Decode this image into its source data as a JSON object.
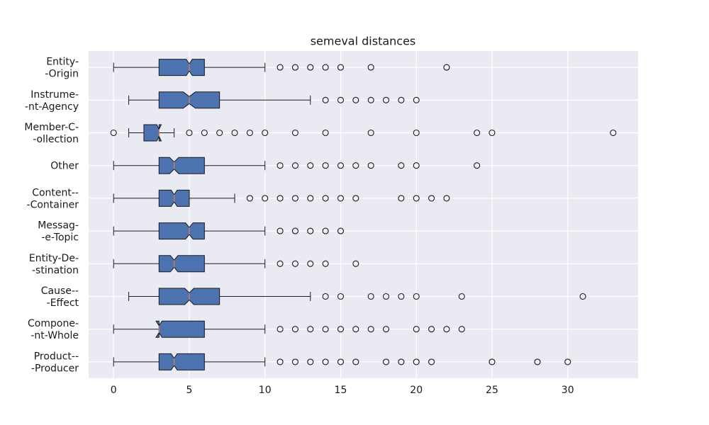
{
  "chart_data": {
    "type": "boxplot",
    "orientation": "horizontal",
    "notched": true,
    "title": "semeval distances",
    "xlabel": "",
    "ylabel": "",
    "xlim": [
      -1.65,
      34.65
    ],
    "xticks": [
      0,
      5,
      10,
      15,
      20,
      25,
      30
    ],
    "grid": true,
    "colors": {
      "plot_background": "#eaeaf2",
      "grid": "#ffffff",
      "box_fill": "#4c72b0",
      "box_edge": "#1a1a1a",
      "median": "#dd8452",
      "whisker": "#1a1a1a",
      "flier": "#1a1a1a"
    },
    "categories": [
      {
        "label": [
          "Entity-",
          "-Origin"
        ],
        "min": 0,
        "q1": 3,
        "median": 5,
        "q3": 6,
        "max": 10,
        "notch": [
          4.8,
          5.2
        ],
        "outliers": [
          11,
          12,
          13,
          14,
          15,
          17,
          22
        ]
      },
      {
        "label": [
          "Instrume-",
          "-nt-Agency"
        ],
        "min": 1,
        "q1": 3,
        "median": 5,
        "q3": 7,
        "max": 13,
        "notch": [
          4.6,
          5.4
        ],
        "outliers": [
          14,
          15,
          16,
          17,
          18,
          19,
          20
        ]
      },
      {
        "label": [
          "Member-C-",
          "-ollection"
        ],
        "min": 1,
        "q1": 2,
        "median": 3,
        "q3": 3,
        "max": 4,
        "notch": [
          2.85,
          3.15
        ],
        "outliers": [
          0,
          5,
          6,
          7,
          8,
          9,
          10,
          12,
          14,
          17,
          20,
          24,
          25,
          33
        ]
      },
      {
        "label": [
          "Other"
        ],
        "min": 0,
        "q1": 3,
        "median": 4,
        "q3": 6,
        "max": 10,
        "notch": [
          3.7,
          4.3
        ],
        "outliers": [
          11,
          12,
          13,
          14,
          15,
          16,
          17,
          19,
          20,
          24
        ]
      },
      {
        "label": [
          "Content--",
          "-Container"
        ],
        "min": 0,
        "q1": 3,
        "median": 4,
        "q3": 5,
        "max": 8,
        "notch": [
          3.8,
          4.2
        ],
        "outliers": [
          9,
          10,
          11,
          12,
          13,
          14,
          15,
          16,
          19,
          20,
          21,
          22
        ]
      },
      {
        "label": [
          "Messag-",
          "-e-Topic"
        ],
        "min": 0,
        "q1": 3,
        "median": 5,
        "q3": 6,
        "max": 10,
        "notch": [
          4.75,
          5.25
        ],
        "outliers": [
          11,
          12,
          13,
          14,
          15
        ]
      },
      {
        "label": [
          "Entity-De-",
          "-stination"
        ],
        "min": 0,
        "q1": 3,
        "median": 4,
        "q3": 6,
        "max": 10,
        "notch": [
          3.75,
          4.25
        ],
        "outliers": [
          11,
          12,
          13,
          14,
          16
        ]
      },
      {
        "label": [
          "Cause--",
          "-Effect"
        ],
        "min": 1,
        "q1": 3,
        "median": 5,
        "q3": 7,
        "max": 13,
        "notch": [
          4.7,
          5.3
        ],
        "outliers": [
          14,
          15,
          17,
          18,
          19,
          20,
          23,
          31
        ]
      },
      {
        "label": [
          "Compone-",
          "-nt-Whole"
        ],
        "min": 0,
        "q1": 3,
        "median": 3,
        "q3": 6,
        "max": 10,
        "notch": [
          2.8,
          3.2
        ],
        "outliers": [
          11,
          12,
          13,
          14,
          15,
          16,
          17,
          18,
          20,
          21,
          22,
          23
        ]
      },
      {
        "label": [
          "Product--",
          "-Producer"
        ],
        "min": 0,
        "q1": 3,
        "median": 4,
        "q3": 6,
        "max": 10,
        "notch": [
          3.8,
          4.2
        ],
        "outliers": [
          11,
          12,
          13,
          14,
          15,
          16,
          18,
          19,
          20,
          21,
          25,
          28,
          30
        ]
      }
    ]
  }
}
